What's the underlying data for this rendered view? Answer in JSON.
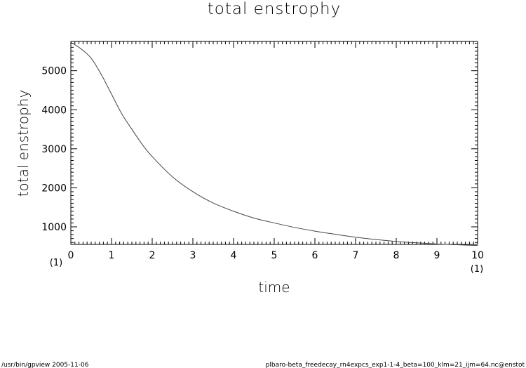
{
  "chart_data": {
    "type": "line",
    "title": "total enstrophy",
    "xlabel": "time",
    "ylabel": "total enstrophy",
    "xlim": [
      0,
      10
    ],
    "ylim": [
      550,
      5750
    ],
    "x_ticks": [
      "0",
      "1",
      "2",
      "3",
      "4",
      "5",
      "6",
      "7",
      "8",
      "9",
      "10"
    ],
    "y_ticks": [
      "1000",
      "2000",
      "3000",
      "4000",
      "5000"
    ],
    "x_unit_left": "(1)",
    "x_unit_right": "(1)",
    "grid": false,
    "series": [
      {
        "x": [
          0,
          0.25,
          0.5,
          0.75,
          1,
          1.25,
          1.5,
          1.75,
          2,
          2.5,
          3,
          3.5,
          4,
          4.5,
          5,
          5.5,
          6,
          6.5,
          7,
          7.5,
          8,
          8.5,
          9,
          9.5,
          10
        ],
        "y": [
          5730,
          5560,
          5320,
          4900,
          4400,
          3900,
          3500,
          3120,
          2800,
          2280,
          1900,
          1610,
          1400,
          1225,
          1100,
          985,
          890,
          810,
          735,
          675,
          625,
          590,
          560,
          540,
          520
        ]
      }
    ]
  },
  "footer": {
    "left": "/usr/bin/gpview   2005-11-06",
    "right": "plbaro-beta_freedecay_rn4expcs_exp1-1-4_beta=100_klm=21_ijm=64.nc@enstot"
  },
  "colors": {
    "line": "#444444",
    "frame": "#000000"
  }
}
